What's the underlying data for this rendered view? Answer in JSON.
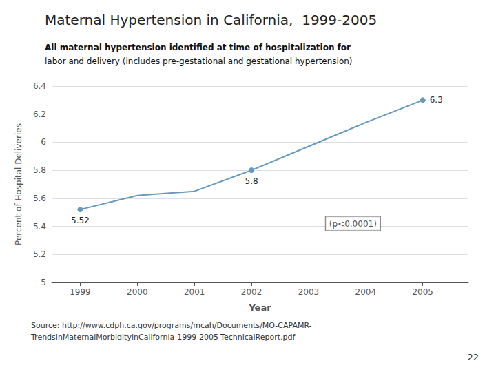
{
  "chart_data": {
    "type": "line",
    "title": "Maternal Hypertension in California,  1999-2005",
    "subtitle": [
      "All maternal hypertension identified at time of hospitalization for",
      "labor and delivery (includes pre-gestational and gestational hypertension)"
    ],
    "x": [
      1999,
      2000,
      2001,
      2002,
      2003,
      2004,
      2005
    ],
    "values": [
      5.52,
      5.62,
      5.65,
      5.8,
      5.97,
      6.14,
      6.3
    ],
    "value_labels": [
      "5.52",
      null,
      null,
      "5.8",
      null,
      null,
      "6.3"
    ],
    "data_labels": true,
    "color": "#6699BB",
    "marker": "circle",
    "xlabel": "Year",
    "ylabel": "Percent of Hospital Deliveries",
    "xlim": [
      1998.5,
      2005.8
    ],
    "xticks": [
      1999,
      2000,
      2001,
      2002,
      2003,
      2004,
      2005
    ],
    "ylim": [
      5.0,
      6.4
    ],
    "yticks": [
      5,
      5.2,
      5.4,
      5.6,
      5.8,
      6,
      6.2,
      6.4
    ],
    "grid": true,
    "annotations": [
      {
        "text": "(p<0.0001)",
        "x": 2003.3,
        "y": 5.42
      }
    ],
    "source": [
      "Source: http://www.cdph.ca.gov/programs/mcah/Documents/MO-CAPAMR-",
      "TrendsinMaternalMorbidityinCalifornia-1999-2005-TechnicalReport.pdf"
    ],
    "page_number": "22"
  }
}
